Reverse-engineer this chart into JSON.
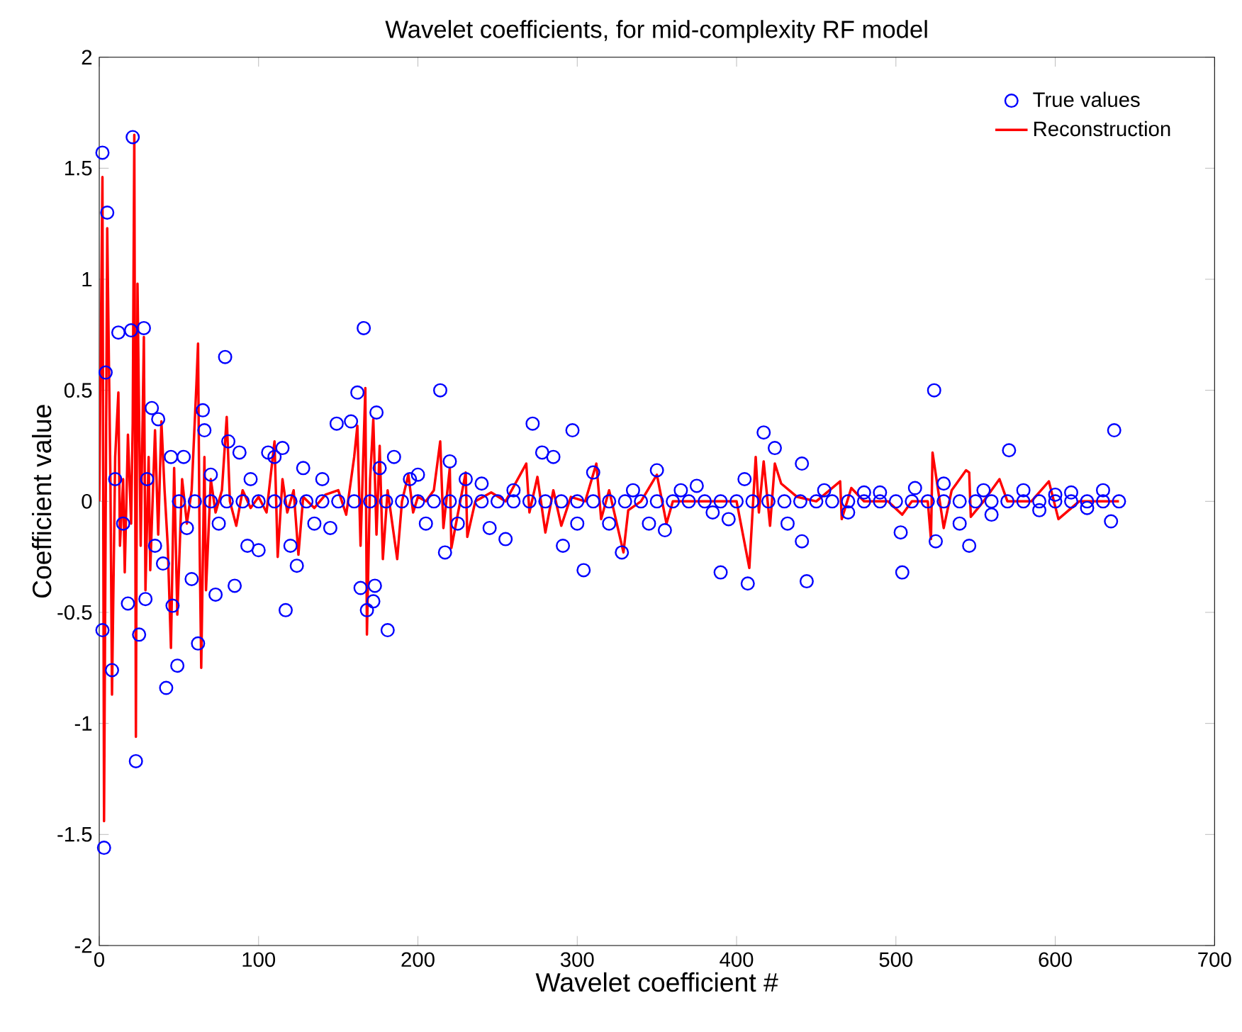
{
  "chart_data": {
    "type": "line",
    "title": "Wavelet coefficients, for mid-complexity RF model",
    "xlabel": "Wavelet coefficient #",
    "ylabel": "Coefficient value",
    "xlim": [
      0,
      700
    ],
    "ylim": [
      -2,
      2
    ],
    "xticks": [
      0,
      100,
      200,
      300,
      400,
      500,
      600,
      700
    ],
    "yticks": [
      -2,
      -1.5,
      -1,
      -0.5,
      0,
      0.5,
      1,
      1.5,
      2
    ],
    "legend": "top right",
    "series": [
      {
        "name": "True values",
        "type": "scatter",
        "marker": "circle",
        "color": "#0000ff",
        "x": [
          2,
          5,
          4,
          2,
          3,
          8,
          12,
          21,
          28,
          20,
          18,
          23,
          25,
          29,
          33,
          37,
          40,
          42,
          46,
          49,
          53,
          58,
          62,
          65,
          66,
          73,
          79,
          81,
          85,
          93,
          100,
          106,
          117,
          124,
          128,
          149,
          158,
          162,
          164,
          166,
          168,
          172,
          173,
          174,
          176,
          181,
          214,
          217,
          255,
          272,
          291,
          297,
          304,
          328,
          350,
          355,
          390,
          407,
          417,
          424,
          441,
          441,
          444,
          503,
          504,
          524,
          525,
          546,
          571,
          635,
          637,
          10,
          15,
          30,
          35,
          45,
          55,
          70,
          75,
          88,
          95,
          110,
          115,
          120,
          135,
          140,
          145,
          185,
          195,
          200,
          205,
          220,
          225,
          230,
          240,
          245,
          260,
          278,
          285,
          300,
          310,
          320,
          335,
          345,
          365,
          375,
          385,
          395,
          405,
          432,
          455,
          470,
          480,
          490,
          512,
          530,
          540,
          555,
          560,
          580,
          590,
          600,
          610,
          620,
          630,
          50,
          60,
          70,
          80,
          90,
          100,
          110,
          120,
          130,
          140,
          150,
          160,
          170,
          180,
          190,
          200,
          210,
          220,
          230,
          240,
          250,
          260,
          270,
          280,
          290,
          300,
          310,
          320,
          330,
          340,
          350,
          360,
          370,
          380,
          390,
          400,
          410,
          420,
          430,
          440,
          450,
          460,
          470,
          480,
          490,
          500,
          510,
          520,
          530,
          540,
          550,
          560,
          570,
          580,
          590,
          600,
          610,
          620,
          630,
          640
        ],
        "values": [
          1.57,
          1.3,
          0.58,
          -0.58,
          -1.56,
          -0.76,
          0.76,
          1.64,
          0.78,
          0.77,
          -0.46,
          -1.17,
          -0.6,
          -0.44,
          0.42,
          0.37,
          -0.28,
          -0.84,
          -0.47,
          -0.74,
          0.2,
          -0.35,
          -0.64,
          0.41,
          0.32,
          -0.42,
          0.65,
          0.27,
          -0.38,
          -0.2,
          -0.22,
          0.22,
          -0.49,
          -0.29,
          0.15,
          0.35,
          0.36,
          0.49,
          -0.39,
          0.78,
          -0.49,
          -0.45,
          -0.38,
          0.4,
          0.15,
          -0.58,
          0.5,
          -0.23,
          -0.17,
          0.35,
          -0.2,
          0.32,
          -0.31,
          -0.23,
          0.14,
          -0.13,
          -0.32,
          -0.37,
          0.31,
          0.24,
          0.17,
          -0.18,
          -0.36,
          -0.14,
          -0.32,
          0.5,
          -0.18,
          -0.2,
          0.23,
          -0.09,
          0.32,
          0.1,
          -0.1,
          0.1,
          -0.2,
          0.2,
          -0.12,
          0.12,
          -0.1,
          0.22,
          0.1,
          0.2,
          0.24,
          -0.2,
          -0.1,
          0.1,
          -0.12,
          0.2,
          0.1,
          0.12,
          -0.1,
          0.18,
          -0.1,
          0.1,
          0.08,
          -0.12,
          0.05,
          0.22,
          0.2,
          -0.1,
          0.13,
          -0.1,
          0.05,
          -0.1,
          0.05,
          0.07,
          -0.05,
          -0.08,
          0.1,
          -0.1,
          0.05,
          -0.05,
          0.04,
          0.04,
          0.06,
          0.08,
          -0.1,
          0.05,
          -0.06,
          0.05,
          -0.04,
          0.03,
          0.04,
          -0.03,
          0.05,
          0,
          0,
          0,
          0,
          0,
          0,
          0,
          0,
          0,
          0,
          0,
          0,
          0,
          0,
          0,
          0,
          0,
          0,
          0,
          0,
          0,
          0,
          0,
          0,
          0,
          0,
          0,
          0,
          0,
          0,
          0,
          0,
          0,
          0,
          0,
          0,
          0,
          0,
          0,
          0,
          0,
          0,
          0,
          0,
          0,
          0,
          0,
          0,
          0,
          0,
          0,
          0,
          0,
          0,
          0,
          0,
          0,
          0,
          0,
          0
        ]
      },
      {
        "name": "Reconstruction",
        "type": "line",
        "marker": "none",
        "line_style": "solid",
        "color": "#ff0000",
        "x": [
          0,
          2,
          3,
          5,
          7,
          8,
          10,
          12,
          13,
          15,
          16,
          18,
          20,
          21,
          22,
          23,
          24,
          26,
          28,
          29,
          31,
          32,
          35,
          37,
          39,
          41,
          43,
          45,
          47,
          49,
          52,
          55,
          58,
          61,
          62,
          63,
          64,
          66,
          67,
          70,
          73,
          77,
          80,
          82,
          86,
          90,
          95,
          100,
          105,
          110,
          112,
          115,
          118,
          122,
          125,
          128,
          135,
          142,
          150,
          155,
          160,
          162,
          164,
          167,
          168,
          170,
          172,
          174,
          176,
          178,
          181,
          187,
          190,
          194,
          197,
          200,
          205,
          210,
          214,
          216,
          220,
          221,
          230,
          231,
          236,
          246,
          255,
          268,
          270,
          275,
          280,
          285,
          290,
          296,
          305,
          312,
          315,
          320,
          329,
          332,
          340,
          350,
          356,
          360,
          380,
          400,
          408,
          412,
          414,
          417,
          421,
          424,
          428,
          438,
          450,
          465,
          466,
          472,
          480,
          495,
          504,
          510,
          520,
          522,
          523,
          530,
          535,
          544,
          546,
          547,
          555,
          565,
          570,
          585,
          596,
          602,
          615,
          640
        ],
        "values": [
          0,
          1.46,
          -1.44,
          1.23,
          0.1,
          -0.87,
          0.2,
          0.49,
          -0.2,
          0.1,
          -0.32,
          0.3,
          -0.1,
          0.35,
          1.65,
          -1.06,
          0.98,
          -0.2,
          0.74,
          -0.4,
          0.2,
          -0.31,
          0.32,
          -0.15,
          0.36,
          0.05,
          -0.2,
          -0.66,
          0.15,
          -0.51,
          0.1,
          -0.1,
          0.05,
          0.53,
          0.71,
          -0.2,
          -0.75,
          0.2,
          -0.4,
          0.1,
          -0.05,
          0.05,
          0.38,
          0,
          -0.11,
          0.05,
          -0.03,
          0.02,
          -0.05,
          0.27,
          -0.25,
          0.1,
          -0.05,
          0.05,
          -0.24,
          0.02,
          -0.03,
          0.03,
          0.05,
          -0.06,
          0.2,
          0.34,
          -0.2,
          0.51,
          -0.6,
          0.1,
          0.37,
          -0.15,
          0.25,
          -0.26,
          0.05,
          -0.26,
          0,
          0.12,
          -0.05,
          0.02,
          0,
          0.05,
          0.27,
          -0.12,
          0.15,
          -0.21,
          0.13,
          -0.16,
          0,
          0.04,
          0,
          0.17,
          -0.05,
          0.11,
          -0.14,
          0.05,
          -0.11,
          0.02,
          0,
          0.17,
          -0.08,
          0.05,
          -0.23,
          -0.04,
          0,
          0.12,
          -0.1,
          0,
          0,
          0,
          -0.3,
          0.2,
          -0.05,
          0.18,
          -0.11,
          0.17,
          0.08,
          0.02,
          0,
          0.09,
          -0.08,
          0.06,
          0,
          0,
          -0.06,
          0,
          0,
          -0.17,
          0.22,
          -0.12,
          0.05,
          0.14,
          0.13,
          -0.07,
          0,
          0.1,
          0,
          0,
          0.09,
          -0.08,
          0,
          0
        ]
      }
    ]
  }
}
